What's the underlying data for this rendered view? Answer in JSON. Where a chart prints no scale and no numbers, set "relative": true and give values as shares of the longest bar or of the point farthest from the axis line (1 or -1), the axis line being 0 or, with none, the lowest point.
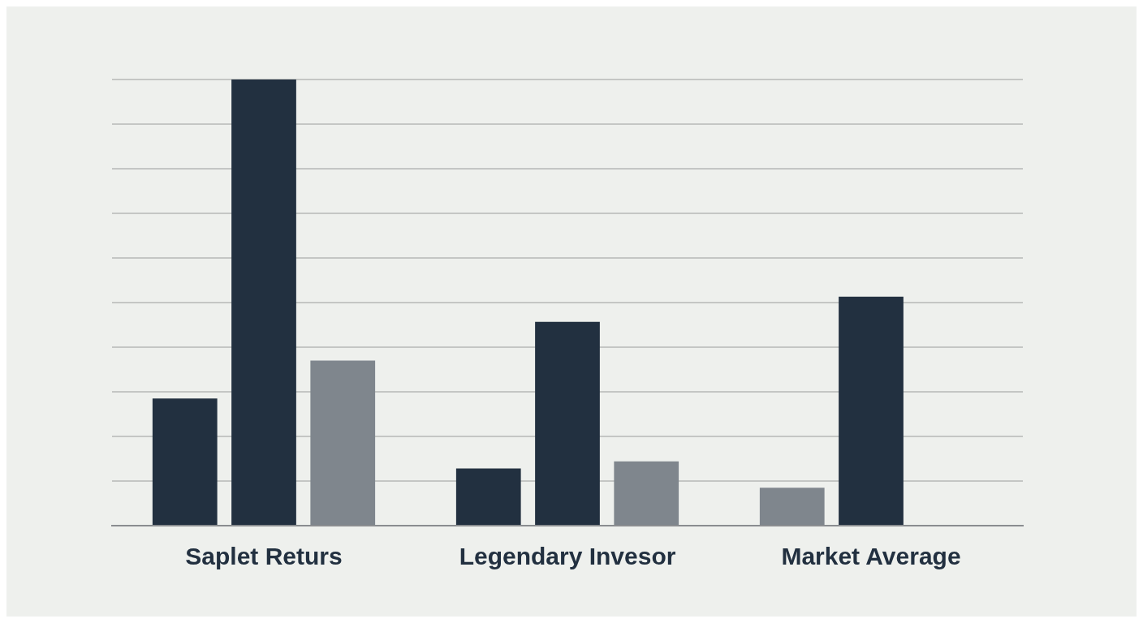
{
  "chart_data": {
    "type": "bar",
    "relative": true,
    "categories": [
      "Saplet Returs",
      "Legendary Invesor",
      "Market Average"
    ],
    "series": [
      {
        "colors": [
          "#223040",
          "#223040",
          "#7f868d"
        ],
        "values": [
          0.285,
          0.128,
          0.085
        ]
      },
      {
        "color": "#223040",
        "values": [
          1,
          0.457,
          0.513
        ]
      },
      {
        "color": "#7f868d",
        "values": [
          0.37,
          0.144,
          null
        ]
      }
    ],
    "grid": "y",
    "legend": false
  }
}
